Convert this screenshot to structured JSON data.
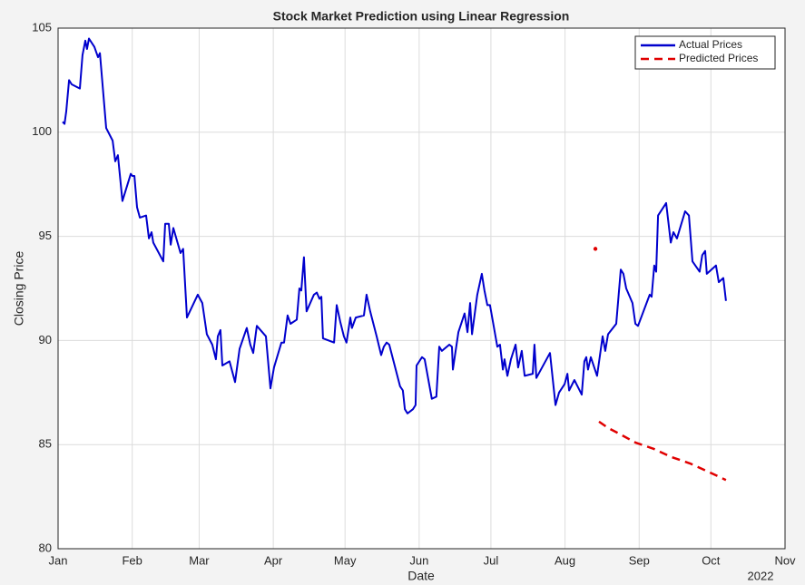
{
  "chart_data": {
    "type": "line",
    "title": "Stock Market Prediction using Linear Regression",
    "xlabel": "Date",
    "ylabel": "Closing Price",
    "x_secondary_label": "2022",
    "xlim": [
      0,
      304
    ],
    "xticks": [
      {
        "value": 0,
        "label": "Jan"
      },
      {
        "value": 31,
        "label": "Feb"
      },
      {
        "value": 59,
        "label": "Mar"
      },
      {
        "value": 90,
        "label": "Apr"
      },
      {
        "value": 120,
        "label": "May"
      },
      {
        "value": 151,
        "label": "Jun"
      },
      {
        "value": 181,
        "label": "Jul"
      },
      {
        "value": 212,
        "label": "Aug"
      },
      {
        "value": 243,
        "label": "Sep"
      },
      {
        "value": 273,
        "label": "Oct"
      },
      {
        "value": 304,
        "label": "Nov"
      }
    ],
    "ylim": [
      80,
      105
    ],
    "yticks": [
      80,
      85,
      90,
      95,
      100,
      105
    ],
    "grid": true,
    "legend": "northeast",
    "series": [
      {
        "name": "Actual Prices",
        "color": "#0000cd",
        "linestyle": "solid",
        "x": [
          1.9,
          2.7,
          3.4,
          4.6,
          5.7,
          9.1,
          10.2,
          11.4,
          12.1,
          12.9,
          15.2,
          16.7,
          17.5,
          20.1,
          22.8,
          23.9,
          25,
          26.9,
          30.4,
          31.1,
          31.9,
          33,
          34.2,
          36.8,
          38,
          39.1,
          39.8,
          44,
          44.8,
          46.3,
          47.1,
          48.2,
          51.2,
          52.3,
          53.9,
          58.4,
          60.3,
          62.2,
          64.5,
          66,
          66.8,
          67.9,
          68.7,
          71.7,
          74,
          75.9,
          78.9,
          80.4,
          81.6,
          83.1,
          86.9,
          88.8,
          90.3,
          93.4,
          94.5,
          96,
          97.2,
          99.8,
          100.9,
          101.7,
          102.8,
          103.9,
          107,
          108.2,
          109.3,
          110.1,
          110.8,
          115.4,
          116.5,
          118,
          119.5,
          120.6,
          122.2,
          122.9,
          124.5,
          127.9,
          129,
          130.5,
          133.2,
          135.1,
          136.2,
          137.4,
          138.5,
          143,
          144.2,
          145,
          146.1,
          148.4,
          149.5,
          149.9,
          152.2,
          153.3,
          156.3,
          158.2,
          159.4,
          160.5,
          163.6,
          164.7,
          165.1,
          167.4,
          170,
          171.2,
          172.3,
          173.1,
          175.3,
          177.2,
          178.3,
          179.5,
          180.6,
          183.7,
          184.8,
          186,
          186.7,
          187.9,
          189.4,
          191.3,
          192.4,
          193.9,
          195.1,
          198.5,
          199.2,
          200,
          205.7,
          208,
          209.5,
          211.8,
          213,
          213.7,
          215.9,
          219,
          220.1,
          220.9,
          221.6,
          222.8,
          225.4,
          227.7,
          228.8,
          230,
          233.4,
          235.3,
          236.4,
          237.6,
          240.2,
          241.4,
          242.5,
          247.4,
          248.2,
          249.3,
          250.1,
          250.9,
          254.3,
          256.2,
          257.3,
          258.8,
          262.2,
          263.8,
          265.3,
          268.3,
          269.4,
          270.6,
          271.3,
          275.1,
          276.3,
          278.2,
          279.3
        ],
        "values": [
          100.5,
          100.4,
          101,
          102.5,
          102.3,
          102.1,
          103.7,
          104.4,
          104,
          104.5,
          104.1,
          103.6,
          103.8,
          100.2,
          99.6,
          98.6,
          98.9,
          96.7,
          98,
          97.9,
          97.9,
          96.4,
          95.9,
          96,
          94.9,
          95.2,
          94.7,
          93.8,
          95.6,
          95.6,
          94.6,
          95.4,
          94.2,
          94.4,
          91.1,
          92.2,
          91.8,
          90.3,
          89.8,
          89.1,
          90.2,
          90.5,
          88.8,
          89,
          88,
          89.6,
          90.6,
          89.8,
          89.4,
          90.7,
          90.2,
          87.7,
          88.7,
          89.9,
          89.9,
          91.2,
          90.8,
          91,
          92.5,
          92.4,
          94,
          91.4,
          92.2,
          92.3,
          92,
          92.1,
          90.1,
          89.9,
          91.7,
          90.9,
          90.2,
          89.9,
          91.1,
          90.6,
          91.1,
          91.2,
          92.2,
          91.4,
          90.2,
          89.3,
          89.7,
          89.9,
          89.8,
          87.8,
          87.6,
          86.7,
          86.5,
          86.7,
          86.9,
          88.8,
          89.2,
          89.1,
          87.2,
          87.3,
          89.7,
          89.5,
          89.8,
          89.7,
          88.6,
          90.4,
          91.3,
          90.4,
          91.8,
          90.3,
          92.2,
          93.2,
          92.4,
          91.7,
          91.7,
          89.7,
          89.8,
          88.6,
          89.1,
          88.3,
          89.1,
          89.8,
          88.7,
          89.5,
          88.3,
          88.4,
          89.8,
          88.2,
          89.4,
          86.9,
          87.5,
          87.9,
          88.4,
          87.6,
          88.1,
          87.4,
          89,
          89.2,
          88.6,
          89.2,
          88.3,
          90.2,
          89.5,
          90.3,
          90.8,
          93.4,
          93.2,
          92.5,
          91.8,
          90.8,
          90.7,
          92.2,
          92.1,
          93.6,
          93.3,
          96,
          96.6,
          94.7,
          95.2,
          94.9,
          96.2,
          96,
          93.8,
          93.3,
          94.1,
          94.3,
          93.2,
          93.6,
          92.8,
          93,
          91.9
        ]
      },
      {
        "name": "Predicted Prices",
        "color": "#e00000",
        "linestyle": "dashed",
        "x": [
          224.7,
          null,
          226.2,
          230,
          235,
          241.4,
          249,
          256.6,
          264.2,
          271.8,
          279.3
        ],
        "values": [
          94.4,
          null,
          86.1,
          85.8,
          85.5,
          85.1,
          84.8,
          84.4,
          84.1,
          83.7,
          83.3
        ]
      }
    ]
  }
}
